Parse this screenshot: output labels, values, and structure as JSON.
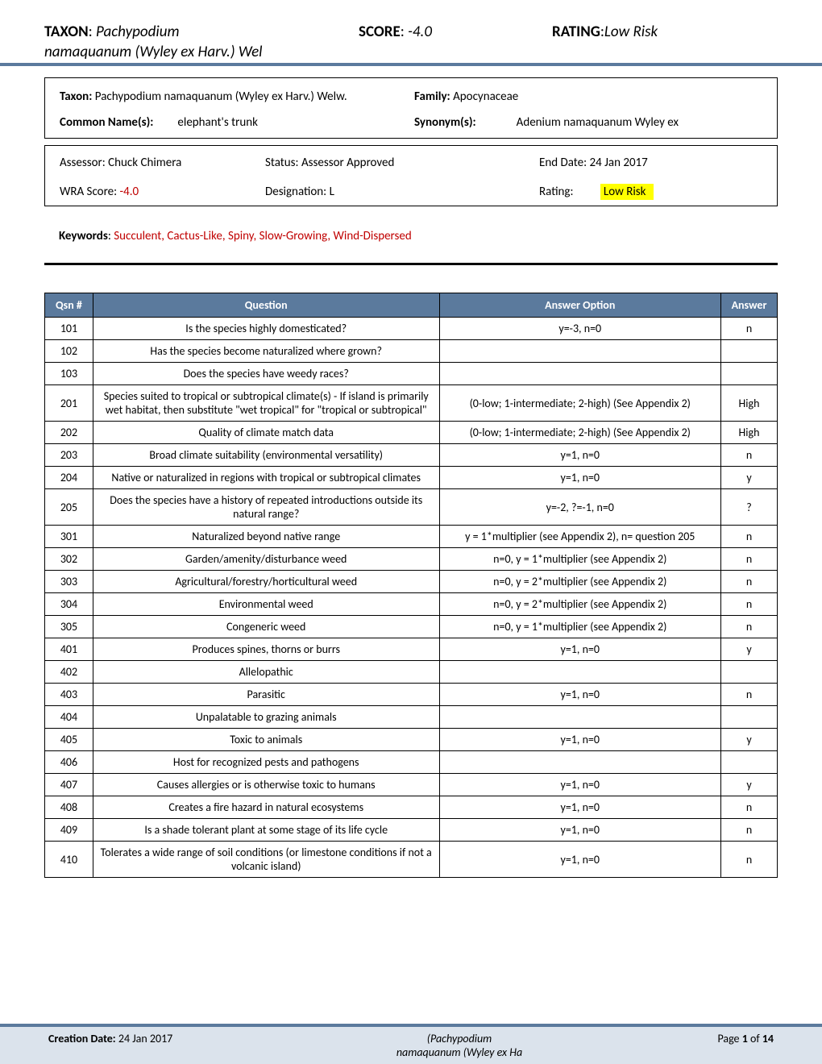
{
  "header": {
    "taxon_label": "TAXON",
    "taxon_value_line1": "Pachypodium",
    "taxon_value_line2": "namaquanum (Wyley ex Harv.) Wel",
    "score_label": "SCORE",
    "score_value": "-4.0",
    "rating_label": "RATING",
    "rating_value": "Low Risk"
  },
  "box1": {
    "taxon_label": "Taxon:",
    "taxon_value": "Pachypodium namaquanum (Wyley ex Harv.) Welw.",
    "family_label": "Family:",
    "family_value": "Apocynaceae",
    "common_label": "Common Name(s):",
    "common_value": "elephant's trunk",
    "syn_label": "Synonym(s):",
    "syn_value": "Adenium namaquanum Wyley ex"
  },
  "box2": {
    "assessor_label": "Assessor:",
    "assessor_value": "Chuck Chimera",
    "status_label": "Status:",
    "status_value": "Assessor Approved",
    "end_label": "End Date:",
    "end_value": "24 Jan 2017",
    "wra_label": "WRA Score:",
    "wra_value": "-4.0",
    "desig_label": "Designation:",
    "desig_value": "L",
    "rating_label": "Rating:",
    "rating_value": "Low Risk"
  },
  "keywords": {
    "label": "Keywords",
    "value": "Succulent, Cactus-Like, Spiny, Slow-Growing, Wind-Dispersed"
  },
  "table": {
    "headers": {
      "qsn": "Qsn #",
      "question": "Question",
      "option": "Answer Option",
      "answer": "Answer"
    },
    "rows": [
      {
        "qsn": "101",
        "q": "Is the species highly domesticated?",
        "opt": "y=-3, n=0",
        "ans": "n"
      },
      {
        "qsn": "102",
        "q": "Has the species become naturalized where grown?",
        "opt": "",
        "ans": ""
      },
      {
        "qsn": "103",
        "q": "Does the species have weedy races?",
        "opt": "",
        "ans": ""
      },
      {
        "qsn": "201",
        "q": "Species suited to tropical or subtropical climate(s) - If island is primarily wet habitat, then substitute \"wet tropical\" for \"tropical or subtropical\"",
        "opt": "(0-low; 1-intermediate; 2-high)  (See Appendix 2)",
        "ans": "High"
      },
      {
        "qsn": "202",
        "q": "Quality of climate match data",
        "opt": "(0-low; 1-intermediate; 2-high)  (See Appendix 2)",
        "ans": "High"
      },
      {
        "qsn": "203",
        "q": "Broad climate suitability (environmental versatility)",
        "opt": "y=1, n=0",
        "ans": "n"
      },
      {
        "qsn": "204",
        "q": "Native or naturalized in regions with tropical or subtropical climates",
        "opt": "y=1, n=0",
        "ans": "y"
      },
      {
        "qsn": "205",
        "q": "Does the species have a history of repeated introductions outside its natural range?",
        "opt": "y=-2, ?=-1, n=0",
        "ans": "?"
      },
      {
        "qsn": "301",
        "q": "Naturalized beyond native range",
        "opt": "y = 1*multiplier (see Appendix 2), n= question 205",
        "ans": "n"
      },
      {
        "qsn": "302",
        "q": "Garden/amenity/disturbance weed",
        "opt": "n=0, y = 1*multiplier (see Appendix 2)",
        "ans": "n"
      },
      {
        "qsn": "303",
        "q": "Agricultural/forestry/horticultural weed",
        "opt": "n=0, y = 2*multiplier (see Appendix 2)",
        "ans": "n"
      },
      {
        "qsn": "304",
        "q": "Environmental weed",
        "opt": "n=0, y = 2*multiplier (see Appendix 2)",
        "ans": "n"
      },
      {
        "qsn": "305",
        "q": "Congeneric weed",
        "opt": "n=0, y = 1*multiplier (see Appendix 2)",
        "ans": "n"
      },
      {
        "qsn": "401",
        "q": "Produces spines, thorns or burrs",
        "opt": "y=1, n=0",
        "ans": "y"
      },
      {
        "qsn": "402",
        "q": "Allelopathic",
        "opt": "",
        "ans": ""
      },
      {
        "qsn": "403",
        "q": "Parasitic",
        "opt": "y=1, n=0",
        "ans": "n"
      },
      {
        "qsn": "404",
        "q": "Unpalatable to grazing animals",
        "opt": "",
        "ans": ""
      },
      {
        "qsn": "405",
        "q": "Toxic to animals",
        "opt": "y=1, n=0",
        "ans": "y"
      },
      {
        "qsn": "406",
        "q": "Host for recognized pests and pathogens",
        "opt": "",
        "ans": ""
      },
      {
        "qsn": "407",
        "q": "Causes allergies or is otherwise toxic to humans",
        "opt": "y=1, n=0",
        "ans": "y"
      },
      {
        "qsn": "408",
        "q": "Creates a fire hazard in natural ecosystems",
        "opt": "y=1, n=0",
        "ans": "n"
      },
      {
        "qsn": "409",
        "q": "Is a shade tolerant plant at some stage of its life cycle",
        "opt": "y=1, n=0",
        "ans": "n"
      },
      {
        "qsn": "410",
        "q": "Tolerates a wide range of soil conditions (or limestone conditions if not a volcanic island)",
        "opt": "y=1, n=0",
        "ans": "n"
      }
    ]
  },
  "footer": {
    "creation_label": "Creation Date:",
    "creation_value": "24 Jan 2017",
    "taxon_line1": "(Pachypodium",
    "taxon_line2": "namaquanum (Wyley ex Ha",
    "page_label": "Page",
    "page_cur": "1",
    "page_of": "of",
    "page_total": "14"
  }
}
